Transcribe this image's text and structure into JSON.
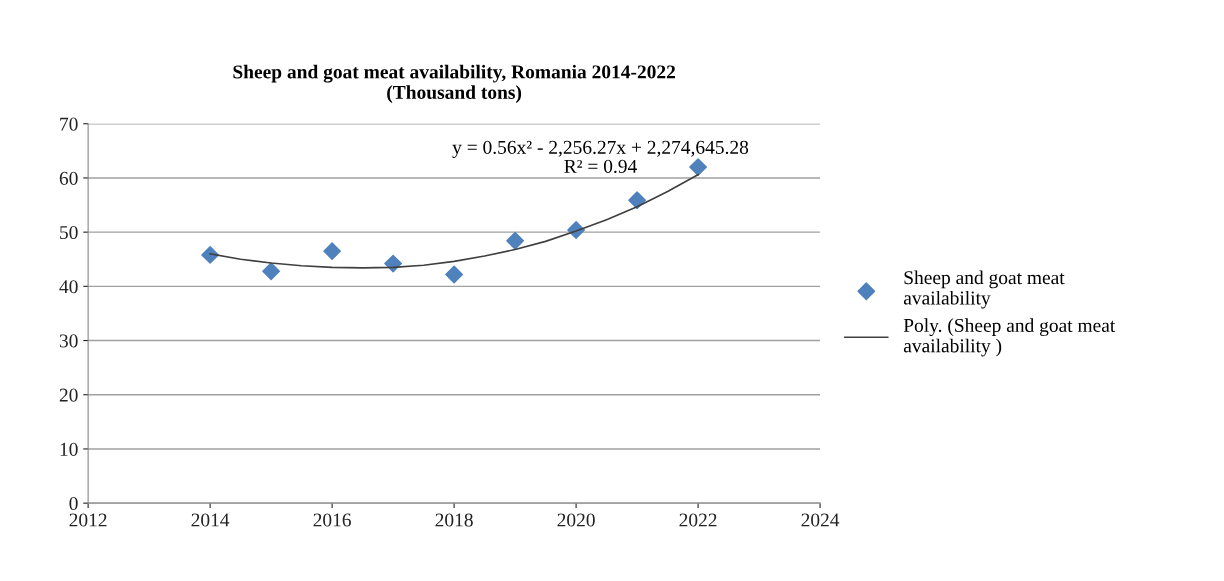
{
  "chart_data": {
    "type": "scatter",
    "title": "Sheep and goat meat availability, Romania 2014-2022\n(Thousand tons)",
    "x": [
      2014,
      2015,
      2016,
      2017,
      2018,
      2019,
      2020,
      2021,
      2022
    ],
    "series": [
      {
        "name": "Sheep and goat meat availability",
        "color": "#4f81bd",
        "marker": "diamond",
        "values": [
          45.8,
          42.8,
          46.5,
          44.2,
          42.2,
          48.4,
          50.4,
          55.9,
          62.0
        ]
      },
      {
        "name": "Poly. (Sheep and goat meat availability )",
        "type": "line",
        "color": "#404040",
        "marker": "none",
        "line_style": "solid",
        "x": [
          2014,
          2014.5,
          2015,
          2015.5,
          2016,
          2016.5,
          2017,
          2017.5,
          2018,
          2018.5,
          2019,
          2019.5,
          2020,
          2020.5,
          2021,
          2021.5,
          2022
        ],
        "values": [
          46.0,
          45.0,
          44.3,
          43.8,
          43.5,
          43.4,
          43.5,
          43.9,
          44.6,
          45.6,
          46.8,
          48.3,
          50.2,
          52.3,
          54.7,
          57.5,
          60.6
        ]
      }
    ],
    "xlim": [
      2012,
      2024
    ],
    "xticks": [
      2012,
      2014,
      2016,
      2018,
      2020,
      2022,
      2024
    ],
    "ylim": [
      0,
      70
    ],
    "yticks": [
      0,
      10,
      20,
      30,
      40,
      50,
      60,
      70
    ],
    "grid": "y",
    "legend": "right",
    "annotations": [
      "y = 0.56x² - 2,256.27x + 2,274,645.28\nR² = 0.94"
    ]
  }
}
